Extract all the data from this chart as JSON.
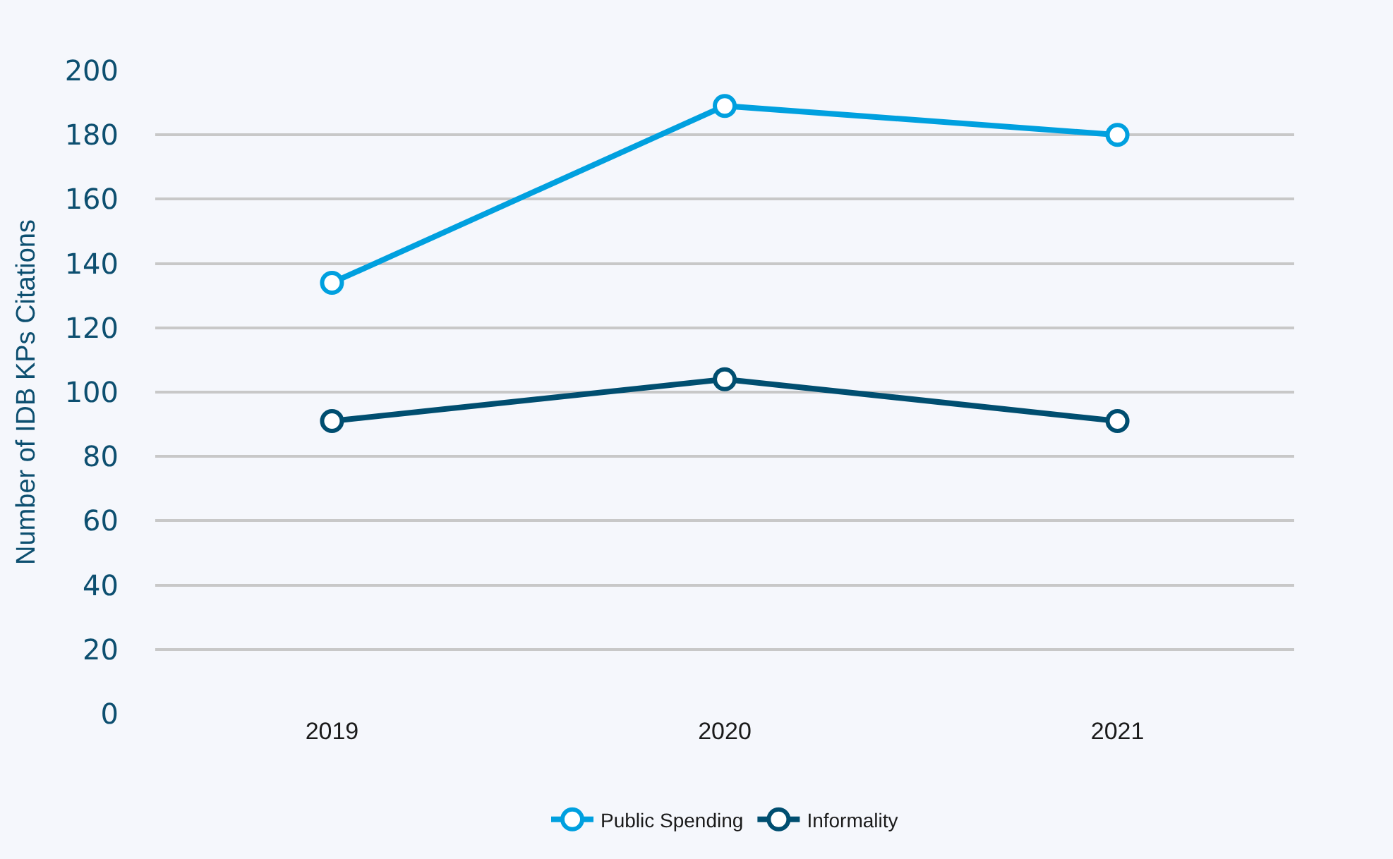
{
  "chart_data": {
    "type": "line",
    "ylabel": "Number of IDB KPs Citations",
    "categories": [
      "2019",
      "2020",
      "2021"
    ],
    "series": [
      {
        "name": "Public Spending",
        "color": "#00a0df",
        "values": [
          134,
          189,
          180
        ]
      },
      {
        "name": "Informality",
        "color": "#004e70",
        "values": [
          91,
          104,
          91
        ]
      }
    ],
    "ylim": [
      0,
      200
    ],
    "yticks": [
      0,
      20,
      40,
      60,
      80,
      100,
      120,
      140,
      160,
      180,
      200
    ],
    "grid": "y",
    "legend": "bottom",
    "marker": "circle",
    "line_style": "solid"
  }
}
